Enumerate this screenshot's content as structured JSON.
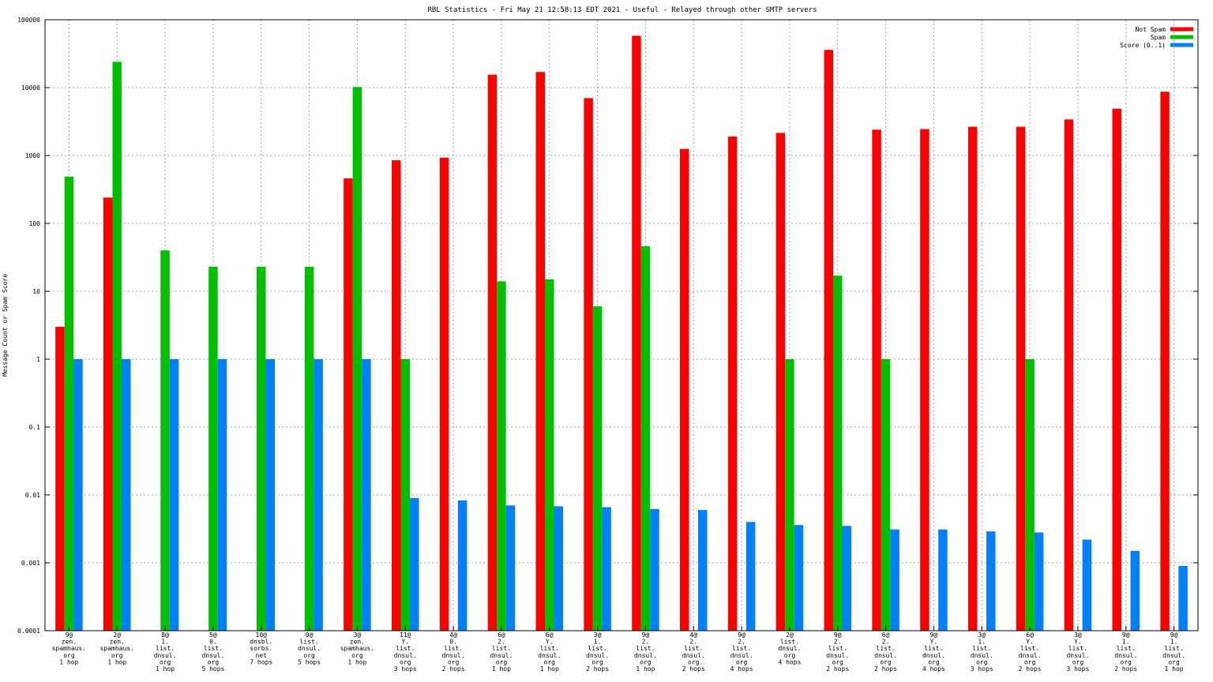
{
  "chart_data": {
    "type": "bar",
    "title": "RBL Statistics - Fri May 21 12:58:13 EDT 2021 - Useful - Relayed through other SMTP servers",
    "ylabel": "Message Count or Spam Score",
    "yscale": "log",
    "ylim": [
      0.0001,
      100000
    ],
    "yticks": [
      "0.0001",
      "0.001",
      "0.01",
      "0.1",
      "1",
      "10",
      "100",
      "1000",
      "10000",
      "100000"
    ],
    "grid": true,
    "legend_position": "top-right",
    "categories": [
      [
        "9@",
        "zen.",
        "spamhaus.",
        "org",
        "1 hop"
      ],
      [
        "2@",
        "zen.",
        "spamhaus.",
        "org",
        "1 hop"
      ],
      [
        "8@",
        "1.",
        "list.",
        "dnsul.",
        "org",
        "1 hop"
      ],
      [
        "5@",
        "0.",
        "list.",
        "dnsul.",
        "org",
        "5 hops"
      ],
      [
        "10@",
        "dnsbl.",
        "sorbs.",
        "net",
        "7 hops"
      ],
      [
        "0@",
        "list.",
        "dnsul.",
        "org",
        "5 hops"
      ],
      [
        "3@",
        "zen.",
        "spamhaus.",
        "org",
        "1 hop"
      ],
      [
        "11@",
        "Y.",
        "list.",
        "dnsul.",
        "org",
        "3 hops"
      ],
      [
        "4@",
        "0.",
        "list.",
        "dnsul.",
        "org",
        "2 hops"
      ],
      [
        "6@",
        "2.",
        "list.",
        "dnsul.",
        "org",
        "1 hop"
      ],
      [
        "6@",
        "Y.",
        "list.",
        "dnsul.",
        "org",
        "1 hop"
      ],
      [
        "3@",
        "1.",
        "list.",
        "dnsul.",
        "org",
        "2 hops"
      ],
      [
        "9@",
        "2.",
        "list.",
        "dnsul.",
        "org",
        "1 hop"
      ],
      [
        "4@",
        "2.",
        "list.",
        "dnsul.",
        "org",
        "2 hops"
      ],
      [
        "9@",
        "2.",
        "list.",
        "dnsul.",
        "org",
        "4 hops"
      ],
      [
        "2@",
        "list.",
        "dnsul.",
        "org",
        "4 hops"
      ],
      [
        "9@",
        "2.",
        "list.",
        "dnsul.",
        "org",
        "2 hops"
      ],
      [
        "6@",
        "2.",
        "list.",
        "dnsul.",
        "org",
        "2 hops"
      ],
      [
        "9@",
        "Y.",
        "list.",
        "dnsul.",
        "org",
        "4 hops"
      ],
      [
        "3@",
        "1.",
        "list.",
        "dnsul.",
        "org",
        "3 hops"
      ],
      [
        "6@",
        "Y.",
        "list.",
        "dnsul.",
        "org",
        "2 hops"
      ],
      [
        "3@",
        "Y.",
        "list.",
        "dnsul.",
        "org",
        "3 hops"
      ],
      [
        "9@",
        "1.",
        "list.",
        "dnsul.",
        "org",
        "2 hops"
      ],
      [
        "9@",
        "1.",
        "list.",
        "dnsul.",
        "org",
        "1 hop"
      ]
    ],
    "series": [
      {
        "name": "Not Spam",
        "color": "#ff0000",
        "values": [
          3,
          240,
          null,
          null,
          null,
          null,
          460,
          850,
          930,
          15500,
          17000,
          7000,
          58000,
          1250,
          1900,
          2150,
          36000,
          2400,
          2450,
          2650,
          2650,
          3400,
          4900,
          8700
        ]
      },
      {
        "name": "Spam",
        "color": "#00c000",
        "values": [
          490,
          24000,
          40,
          23,
          23,
          23,
          10200,
          1,
          null,
          14,
          15,
          6,
          46,
          null,
          null,
          1,
          17,
          1,
          null,
          null,
          1,
          null,
          null,
          null
        ]
      },
      {
        "name": "Score (0..1)",
        "color": "#0080ff",
        "values": [
          1,
          1,
          1,
          1,
          1,
          1,
          1,
          0.009,
          0.0083,
          0.007,
          0.0068,
          0.0066,
          0.0062,
          0.006,
          0.004,
          0.0036,
          0.0035,
          0.0031,
          0.0031,
          0.0029,
          0.0028,
          0.0022,
          0.0015,
          0.0009
        ]
      }
    ]
  }
}
